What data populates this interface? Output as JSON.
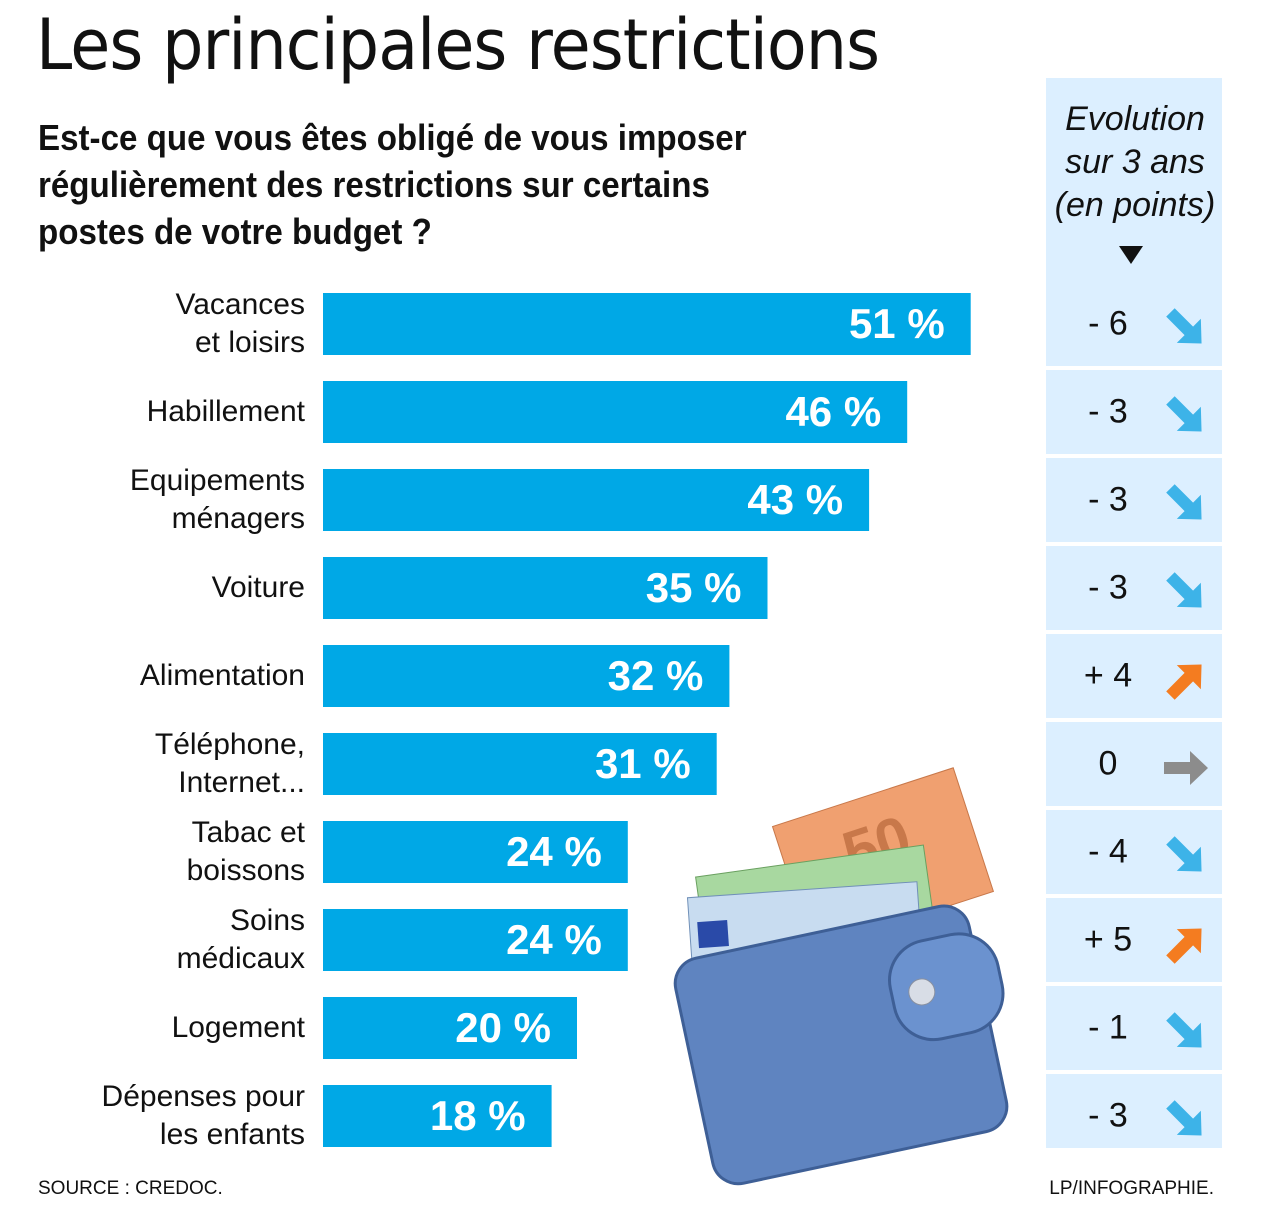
{
  "chart_data": {
    "type": "bar",
    "orientation": "horizontal",
    "title": "Les principales restrictions",
    "subtitle": "Est-ce que vous êtes obligé de vous imposer\nrégulièrement des restrictions sur certains\npostes de votre budget ?",
    "categories": [
      "Vacances\net loisirs",
      "Habillement",
      "Equipements\nménagers",
      "Voiture",
      "Alimentation",
      "Téléphone,\nInternet...",
      "Tabac et\nboissons",
      "Soins\nmédicaux",
      "Logement",
      "Dépenses pour\nles enfants"
    ],
    "values": [
      51,
      46,
      43,
      35,
      32,
      31,
      24,
      24,
      20,
      18
    ],
    "value_labels": [
      "51 %",
      "46 %",
      "43 %",
      "35 %",
      "32 %",
      "31 %",
      "24 %",
      "24 %",
      "20 %",
      "18 %"
    ],
    "color": "#00a8e6",
    "evolution": {
      "title": "Evolution\nsur 3 ans\n(en points)",
      "values": [
        -6,
        -3,
        -3,
        -3,
        4,
        0,
        -4,
        5,
        -1,
        -3
      ],
      "value_labels": [
        "- 6",
        "- 3",
        "- 3",
        "- 3",
        "+ 4",
        "0",
        "- 4",
        "+ 5",
        "- 1",
        "- 3"
      ],
      "colors": {
        "down": "#3db3e8",
        "up": "#f47c20",
        "flat": "#8c8c8c"
      }
    },
    "source": "SOURCE : CREDOC.",
    "credit": "LP/INFOGRAPHIE."
  }
}
